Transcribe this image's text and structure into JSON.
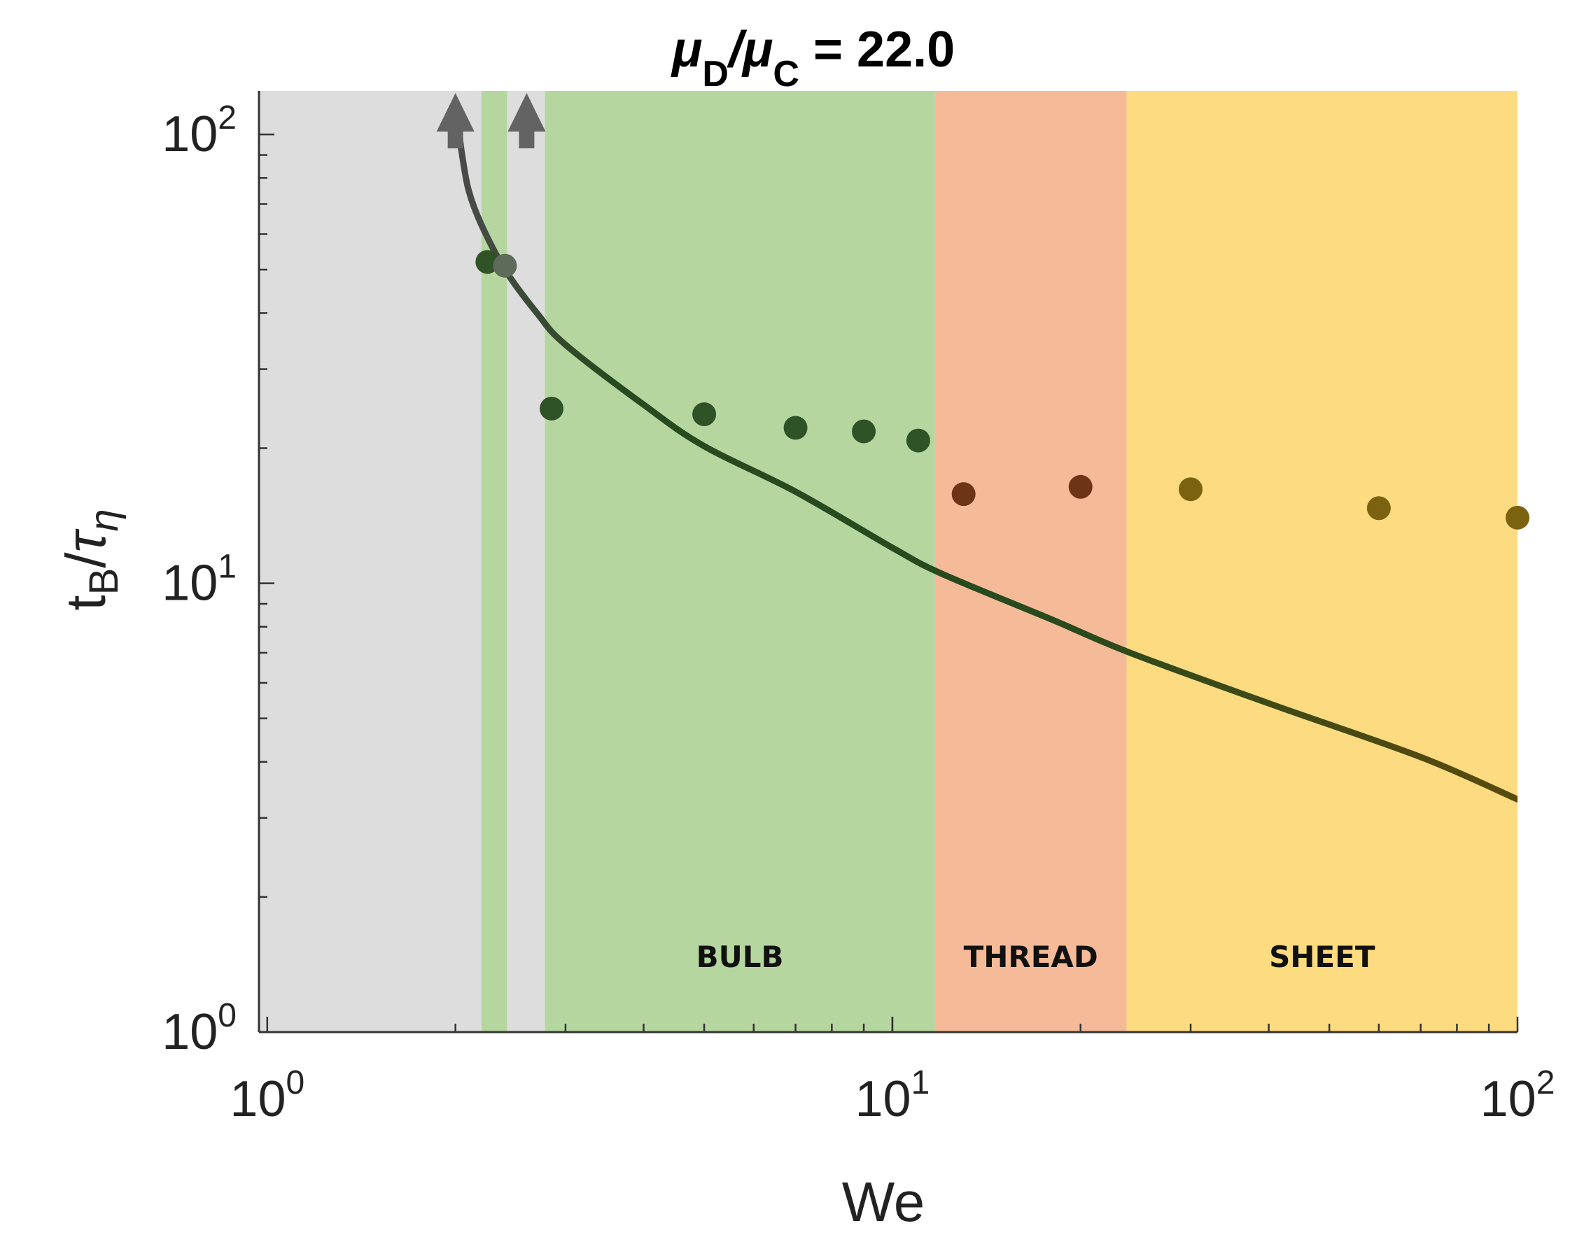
{
  "chart_data": {
    "type": "scatter",
    "title": {
      "mu1": "μ",
      "sub1": "D",
      "slash": "/",
      "mu2": "μ",
      "sub2": "C",
      "value": " = 22.0"
    },
    "xlabel": "We",
    "ylabel": {
      "t": "t",
      "sub": "B",
      "slash": "/",
      "tau": "τ",
      "tausub": "η"
    },
    "xscale": "log",
    "yscale": "log",
    "xlim": [
      0.97,
      100
    ],
    "ylim": [
      1,
      125
    ],
    "x_ticks": [
      {
        "value": 1,
        "base": "10",
        "exp": "0"
      },
      {
        "value": 10,
        "base": "10",
        "exp": "1"
      },
      {
        "value": 100,
        "base": "10",
        "exp": "2"
      }
    ],
    "y_ticks": [
      {
        "value": 1,
        "base": "10",
        "exp": "0"
      },
      {
        "value": 10,
        "base": "10",
        "exp": "1"
      },
      {
        "value": 100,
        "base": "10",
        "exp": "2"
      }
    ],
    "regions": [
      {
        "name": "no-breakup",
        "from": 0.97,
        "to": 2.2,
        "color": "#dddddd",
        "label": ""
      },
      {
        "name": "bulb-narrow",
        "from": 2.2,
        "to": 2.42,
        "color": "#b6d6a0",
        "label": ""
      },
      {
        "name": "no-breakup-2",
        "from": 2.42,
        "to": 2.78,
        "color": "#dddddd",
        "label": ""
      },
      {
        "name": "bulb",
        "from": 2.78,
        "to": 11.7,
        "color": "#b6d6a0",
        "label": "BULB"
      },
      {
        "name": "thread",
        "from": 11.7,
        "to": 23.7,
        "color": "#f5bb98",
        "label": "THREAD"
      },
      {
        "name": "sheet",
        "from": 23.7,
        "to": 100,
        "color": "#fddb80",
        "label": "SHEET"
      }
    ],
    "arrows": [
      {
        "x": 2.0,
        "color": "#636363"
      },
      {
        "x": 2.6,
        "color": "#636363"
      }
    ],
    "series": [
      {
        "name": "data",
        "points": [
          {
            "x": 2.25,
            "y": 52.0,
            "color": "#2f5227"
          },
          {
            "x": 2.4,
            "y": 51.0,
            "color": "#5e6a5a"
          },
          {
            "x": 2.85,
            "y": 24.5,
            "color": "#2f5227"
          },
          {
            "x": 5.0,
            "y": 23.8,
            "color": "#2f5227"
          },
          {
            "x": 7.0,
            "y": 22.2,
            "color": "#2f5227"
          },
          {
            "x": 9.0,
            "y": 21.8,
            "color": "#2f5227"
          },
          {
            "x": 11.0,
            "y": 20.8,
            "color": "#2f5227"
          },
          {
            "x": 13.0,
            "y": 15.8,
            "color": "#6e3416"
          },
          {
            "x": 20.0,
            "y": 16.4,
            "color": "#6e3416"
          },
          {
            "x": 30.0,
            "y": 16.2,
            "color": "#7a6210"
          },
          {
            "x": 60.0,
            "y": 14.7,
            "color": "#7a6210"
          },
          {
            "x": 100.0,
            "y": 14.0,
            "color": "#7a6210"
          }
        ]
      },
      {
        "name": "model",
        "line": [
          {
            "x": 2.03,
            "y": 100
          },
          {
            "x": 2.05,
            "y": 90
          },
          {
            "x": 2.1,
            "y": 75
          },
          {
            "x": 2.2,
            "y": 63
          },
          {
            "x": 2.4,
            "y": 50
          },
          {
            "x": 2.7,
            "y": 40
          },
          {
            "x": 3.0,
            "y": 34
          },
          {
            "x": 4.0,
            "y": 25
          },
          {
            "x": 5.0,
            "y": 20.2
          },
          {
            "x": 7.0,
            "y": 16.0
          },
          {
            "x": 10.0,
            "y": 12.0
          },
          {
            "x": 12.0,
            "y": 10.5
          },
          {
            "x": 18.0,
            "y": 8.3
          },
          {
            "x": 24.0,
            "y": 7.0
          },
          {
            "x": 40.0,
            "y": 5.4
          },
          {
            "x": 70.0,
            "y": 4.1
          },
          {
            "x": 100.0,
            "y": 3.3
          }
        ],
        "color_start": "#4a4a4a",
        "color_mid": "#274a1e",
        "color_end": "#5a4a0e"
      }
    ]
  }
}
